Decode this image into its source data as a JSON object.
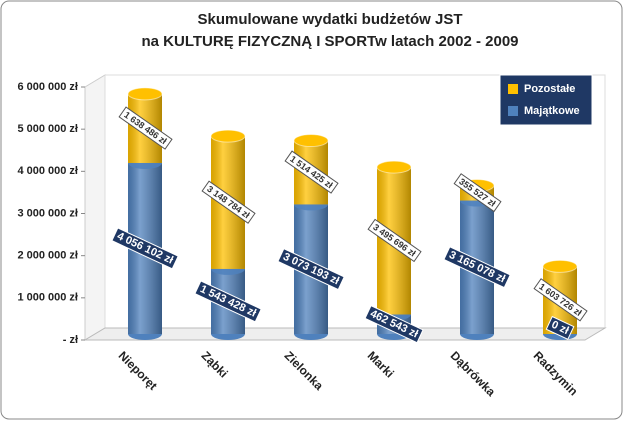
{
  "chart_data": {
    "type": "stacked-cylinder",
    "title": "Skumulowane wydatki budżetów JST",
    "subtitle": "na KULTURĘ FIZYCZNĄ I SPORTw latach 2002 - 2009",
    "categories": [
      "Nieporęt",
      "Ząbki",
      "Zielonka",
      "Marki",
      "Dąbrówka",
      "Radzymin"
    ],
    "series": [
      {
        "name": "Majątkowe",
        "color": "#4f81bd",
        "values": [
          4056102,
          1543428,
          3073193,
          462543,
          3165078,
          0
        ],
        "value_labels": [
          "4 056 102 zł",
          "1 543 428 zł",
          "3 073 193 zł",
          "462 543 zł",
          "3 165 078 zł",
          "0 zł"
        ]
      },
      {
        "name": "Pozostałe",
        "color": "#ffc000",
        "values": [
          1638486,
          3148784,
          1514425,
          3495696,
          355527,
          1603726
        ],
        "value_labels": [
          "1 638 486 zł",
          "3 148 784 zł",
          "1 514 425 zł",
          "3 495 696 zł",
          "355 527 zł",
          "1 603 726 zł"
        ]
      }
    ],
    "ylim": [
      0,
      6000000
    ],
    "yticks": [
      {
        "value": 0,
        "label": "- zł"
      },
      {
        "value": 1000000,
        "label": "1 000 000 zł"
      },
      {
        "value": 2000000,
        "label": "2 000 000 zł"
      },
      {
        "value": 3000000,
        "label": "3 000 000 zł"
      },
      {
        "value": 4000000,
        "label": "4 000 000 zł"
      },
      {
        "value": 5000000,
        "label": "5 000 000 zł"
      },
      {
        "value": 6000000,
        "label": "6 000 000 zł"
      }
    ],
    "legend": "top-right"
  }
}
